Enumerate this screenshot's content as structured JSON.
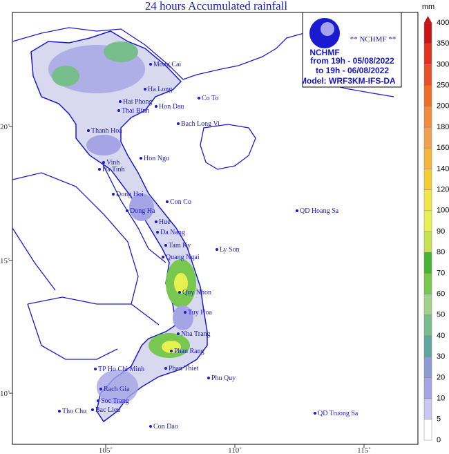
{
  "title": "24 hours Accumulated rainfall",
  "unit": "mm",
  "info": {
    "brand": "** NCHMF **",
    "logo": "NCHMF",
    "from": "from 19h - 05/08/2022",
    "to": "to 19h - 06/08/2022",
    "model": "Model: WRF3KM-IFS-DA"
  },
  "lon_labels": [
    "105˚",
    "110˚",
    "115˚"
  ],
  "lat_labels": [
    "20˚",
    "15˚",
    "10˚"
  ],
  "places": [
    "Mong Cai",
    "Ha Long",
    "Co To",
    "Hai Phong",
    "Thai Binh",
    "Hon Dau",
    "Bach Long Vi",
    "Thanh Hoa",
    "Vinh",
    "Hon Ngu",
    "Ha Tinh",
    "Dong Hoi",
    "Con Co",
    "Dong Ha",
    "Hue",
    "Da Nang",
    "Tam Ky",
    "Ly Son",
    "Quang Ngai",
    "QD Hoang Sa",
    "Quy Nhon",
    "Tuy Hoa",
    "Nha Trang",
    "Phan Rang",
    "Phan Thiet",
    "TP Ho Chi Minh",
    "Phu Quy",
    "Rach Gia",
    "Soc Trang",
    "Bac Lieu",
    "Tho Chu",
    "Con Dao",
    "QD Truong Sa"
  ],
  "colorbar": {
    "levels": [
      0,
      5,
      10,
      20,
      30,
      40,
      50,
      60,
      70,
      80,
      90,
      100,
      120,
      140,
      160,
      180,
      200,
      250,
      300,
      350,
      400
    ],
    "colors": [
      "#ffffff",
      "#c8c8f0",
      "#a5a5e6",
      "#8c9bd2",
      "#5fa5a0",
      "#78be8c",
      "#a0d28c",
      "#78c850",
      "#46b432",
      "#c8e150",
      "#e6f050",
      "#f0e646",
      "#f5cd32",
      "#f5b43c",
      "#f0a050",
      "#f08c3c",
      "#ec6e28",
      "#e65028",
      "#dc321e",
      "#c81414"
    ]
  }
}
